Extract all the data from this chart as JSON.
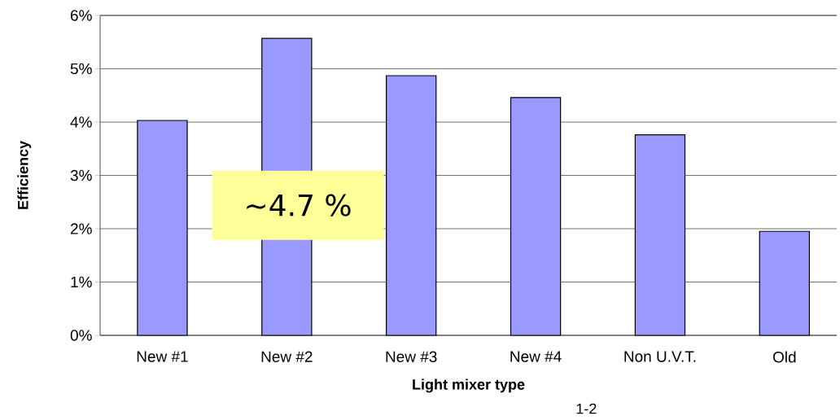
{
  "chart_data": {
    "type": "bar",
    "xlabel": "Light mixer type",
    "ylabel": "Efficiency",
    "categories": [
      "New #1",
      "New #2",
      "New #3",
      "New #4",
      "Non U.V.T.",
      "Old"
    ],
    "values": [
      4.03,
      5.57,
      4.87,
      4.46,
      3.76,
      1.95
    ],
    "color": "#9999ff",
    "ylim": [
      0,
      6
    ],
    "yticks": [
      {
        "value": 0,
        "label": "0%"
      },
      {
        "value": 1,
        "label": "1%"
      },
      {
        "value": 2,
        "label": "2%"
      },
      {
        "value": 3,
        "label": "3%"
      },
      {
        "value": 4,
        "label": "4%"
      },
      {
        "value": 5,
        "label": "5%"
      },
      {
        "value": 6,
        "label": "6%"
      }
    ],
    "grid": "y",
    "annotations": [
      "~4.7 %",
      "1-2"
    ]
  }
}
